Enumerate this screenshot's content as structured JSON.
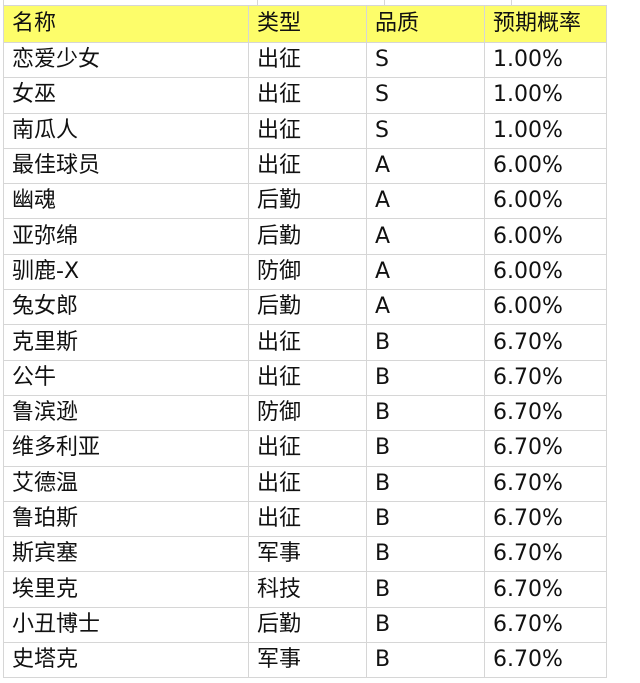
{
  "header": [
    "名称",
    "类型",
    "品质",
    "预期概率"
  ],
  "highlight_color": "#fdfd6a",
  "rows": [
    [
      "恋爱少女",
      "出征",
      "S",
      "1.00%"
    ],
    [
      "女巫",
      "出征",
      "S",
      "1.00%"
    ],
    [
      "南瓜人",
      "出征",
      "S",
      "1.00%"
    ],
    [
      "最佳球员",
      "出征",
      "A",
      "6.00%"
    ],
    [
      "幽魂",
      "后勤",
      "A",
      "6.00%"
    ],
    [
      "亚弥绵",
      "后勤",
      "A",
      "6.00%"
    ],
    [
      "驯鹿-X",
      "防御",
      "A",
      "6.00%"
    ],
    [
      "兔女郎",
      "后勤",
      "A",
      "6.00%"
    ],
    [
      "克里斯",
      "出征",
      "B",
      "6.70%"
    ],
    [
      "公牛",
      "出征",
      "B",
      "6.70%"
    ],
    [
      "鲁滨逊",
      "防御",
      "B",
      "6.70%"
    ],
    [
      "维多利亚",
      "出征",
      "B",
      "6.70%"
    ],
    [
      "艾德温",
      "出征",
      "B",
      "6.70%"
    ],
    [
      "鲁珀斯",
      "出征",
      "B",
      "6.70%"
    ],
    [
      "斯宾塞",
      "军事",
      "B",
      "6.70%"
    ],
    [
      "埃里克",
      "科技",
      "B",
      "6.70%"
    ],
    [
      "小丑博士",
      "后勤",
      "B",
      "6.70%"
    ],
    [
      "史塔克",
      "军事",
      "B",
      "6.70%"
    ]
  ]
}
